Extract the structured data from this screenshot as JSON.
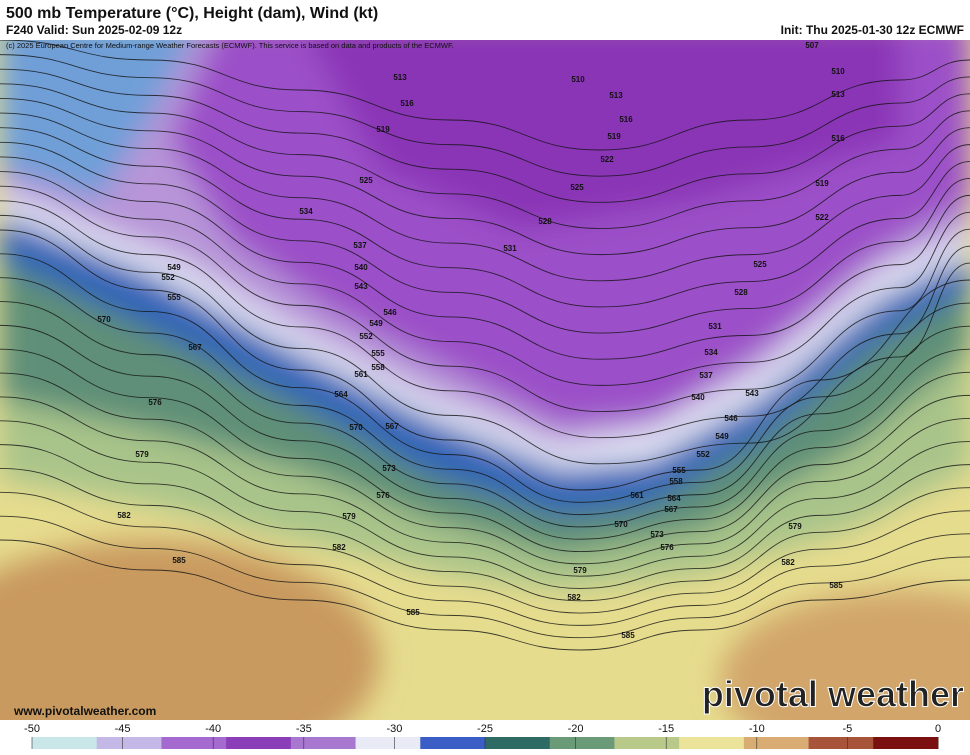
{
  "header": {
    "title": "500 mb Temperature (°C), Height (dam), Wind (kt)",
    "valid": "F240 Valid: Sun 2025-02-09 12z",
    "init": "Init: Thu 2025-01-30 12z ECMWF",
    "copyright": "(c) 2025 European Centre for Medium-range Weather Forecasts (ECMWF). This service is based on data and products of the ECMWF."
  },
  "map": {
    "contour_labels": [
      507,
      510,
      510,
      513,
      513,
      513,
      516,
      516,
      516,
      519,
      519,
      519,
      522,
      522,
      525,
      525,
      525,
      528,
      528,
      531,
      531,
      534,
      534,
      537,
      537,
      540,
      540,
      543,
      543,
      546,
      546,
      549,
      549,
      549,
      552,
      552,
      552,
      555,
      555,
      555,
      558,
      558,
      561,
      561,
      564,
      564,
      567,
      567,
      567,
      570,
      570,
      570,
      573,
      573,
      576,
      576,
      576,
      579,
      579,
      579,
      579,
      582,
      582,
      582,
      582,
      585,
      585,
      585,
      585
    ]
  },
  "footer": {
    "url": "www.pivotalweather.com",
    "brand": "pivotal weather"
  },
  "colorbar": {
    "lim": [
      -50,
      0
    ],
    "ticks": [
      -50,
      -45,
      -40,
      -35,
      -30,
      -25,
      -20,
      -15,
      -10,
      -5,
      0
    ],
    "colors": [
      "#c9e7e8",
      "#c4b8e6",
      "#a46ad0",
      "#8a3fb8",
      "#a877d0",
      "#e8eaf5",
      "#3a5ec6",
      "#2d6b64",
      "#6b9a78",
      "#b9c98a",
      "#ebe39a",
      "#d8ac72",
      "#a8543a",
      "#7a1010"
    ]
  }
}
